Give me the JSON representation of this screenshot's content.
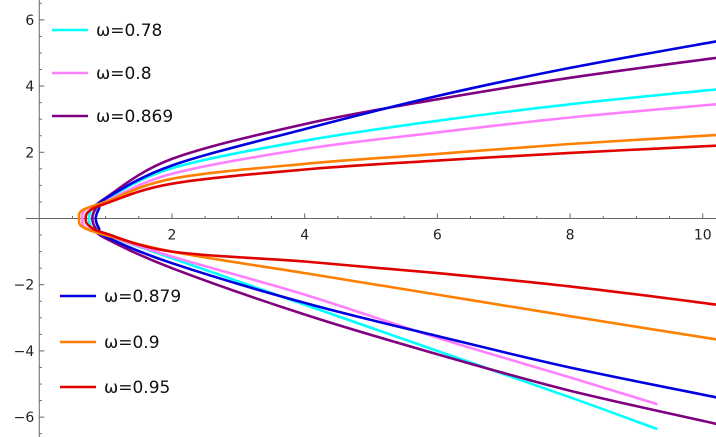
{
  "chart_data": {
    "type": "line",
    "title": "",
    "xlabel": "",
    "ylabel": "",
    "xlim": [
      -0.2,
      10.2
    ],
    "ylim": [
      -6.6,
      6.6
    ],
    "x_ticks": [
      2,
      4,
      6,
      8,
      10
    ],
    "y_ticks": [
      -6,
      -4,
      -2,
      2,
      4,
      6
    ],
    "x_tick_labels": [
      "2",
      "4",
      "6",
      "8",
      "10"
    ],
    "y_tick_labels": [
      "−6",
      "−4",
      "−2",
      "2",
      "4",
      "6"
    ],
    "grid": false,
    "legend_placement": "left, split into upper and lower groups",
    "series": [
      {
        "name": "ω=0.78",
        "color": "#00FFFF",
        "vertex_x": 0.75,
        "upper": [
          [
            0.75,
            0
          ],
          [
            0.8,
            0.3
          ],
          [
            1,
            0.58
          ],
          [
            2,
            1.52
          ],
          [
            4,
            2.35
          ],
          [
            6,
            2.95
          ],
          [
            8,
            3.45
          ],
          [
            10.2,
            3.9
          ]
        ],
        "lower": [
          [
            0.75,
            0
          ],
          [
            0.8,
            -0.3
          ],
          [
            1,
            -0.5
          ],
          [
            2,
            -1.2
          ],
          [
            4,
            -2.6
          ],
          [
            6,
            -4.0
          ],
          [
            8,
            -5.4
          ],
          [
            9.3,
            -6.35
          ]
        ]
      },
      {
        "name": "ω=0.8",
        "color": "#FF80FF",
        "vertex_x": 0.65,
        "upper": [
          [
            0.65,
            0
          ],
          [
            0.7,
            0.28
          ],
          [
            1,
            0.52
          ],
          [
            2,
            1.35
          ],
          [
            4,
            2.1
          ],
          [
            6,
            2.6
          ],
          [
            8,
            3.05
          ],
          [
            10.2,
            3.45
          ]
        ],
        "lower": [
          [
            0.65,
            0
          ],
          [
            0.7,
            -0.28
          ],
          [
            1,
            -0.5
          ],
          [
            2,
            -1.15
          ],
          [
            4,
            -2.3
          ],
          [
            6,
            -3.6
          ],
          [
            8,
            -4.8
          ],
          [
            9.3,
            -5.6
          ]
        ]
      },
      {
        "name": "ω=0.869",
        "color": "#800080",
        "vertex_x": 0.8,
        "upper": [
          [
            0.8,
            0
          ],
          [
            0.85,
            0.3
          ],
          [
            1,
            0.62
          ],
          [
            2,
            1.8
          ],
          [
            4,
            2.85
          ],
          [
            6,
            3.6
          ],
          [
            8,
            4.25
          ],
          [
            10.2,
            4.85
          ]
        ],
        "lower": [
          [
            0.8,
            0
          ],
          [
            0.85,
            -0.3
          ],
          [
            1,
            -0.6
          ],
          [
            2,
            -1.5
          ],
          [
            4,
            -2.9
          ],
          [
            6,
            -4.1
          ],
          [
            8,
            -5.2
          ],
          [
            10.2,
            -6.2
          ]
        ]
      },
      {
        "name": "ω=0.879",
        "color": "#0000E0",
        "vertex_x": 0.85,
        "upper": [
          [
            0.85,
            0
          ],
          [
            0.9,
            0.3
          ],
          [
            1,
            0.6
          ],
          [
            2,
            1.6
          ],
          [
            4,
            2.7
          ],
          [
            6,
            3.7
          ],
          [
            8,
            4.55
          ],
          [
            10.2,
            5.35
          ]
        ],
        "lower": [
          [
            0.85,
            0
          ],
          [
            0.9,
            -0.3
          ],
          [
            1,
            -0.55
          ],
          [
            2,
            -1.35
          ],
          [
            4,
            -2.55
          ],
          [
            6,
            -3.55
          ],
          [
            8,
            -4.5
          ],
          [
            10.2,
            -5.4
          ]
        ]
      },
      {
        "name": "ω=0.9",
        "color": "#FF8000",
        "vertex_x": 0.6,
        "upper": [
          [
            0.6,
            0
          ],
          [
            0.65,
            0.25
          ],
          [
            1,
            0.5
          ],
          [
            2,
            1.2
          ],
          [
            4,
            1.65
          ],
          [
            6,
            1.95
          ],
          [
            8,
            2.25
          ],
          [
            10.2,
            2.52
          ]
        ],
        "lower": [
          [
            0.6,
            0
          ],
          [
            0.65,
            -0.25
          ],
          [
            1,
            -0.5
          ],
          [
            2,
            -1.0
          ],
          [
            4,
            -1.65
          ],
          [
            6,
            -2.3
          ],
          [
            8,
            -2.95
          ],
          [
            10.2,
            -3.65
          ]
        ]
      },
      {
        "name": "ω=0.95",
        "color": "#E00000",
        "vertex_x": 0.7,
        "upper": [
          [
            0.7,
            0
          ],
          [
            0.75,
            0.22
          ],
          [
            1,
            0.45
          ],
          [
            2,
            1.05
          ],
          [
            4,
            1.48
          ],
          [
            6,
            1.75
          ],
          [
            8,
            1.98
          ],
          [
            10.2,
            2.2
          ]
        ],
        "lower": [
          [
            0.7,
            0
          ],
          [
            0.75,
            -0.22
          ],
          [
            1,
            -0.45
          ],
          [
            2,
            -1.0
          ],
          [
            4,
            -1.3
          ],
          [
            6,
            -1.65
          ],
          [
            8,
            -2.05
          ],
          [
            10.2,
            -2.6
          ]
        ]
      }
    ],
    "legend": [
      {
        "label": "ω=0.78",
        "series": 0
      },
      {
        "label": "ω=0.8",
        "series": 1
      },
      {
        "label": "ω=0.869",
        "series": 2
      },
      {
        "label": "ω=0.879",
        "series": 3
      },
      {
        "label": "ω=0.9",
        "series": 4
      },
      {
        "label": "ω=0.95",
        "series": 5
      }
    ]
  }
}
